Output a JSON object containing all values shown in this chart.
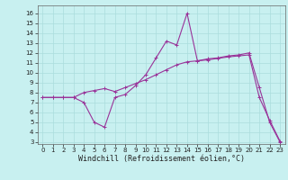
{
  "title": "",
  "xlabel": "Windchill (Refroidissement éolien,°C)",
  "ylabel": "",
  "bg_color": "#c8f0f0",
  "line_color": "#993399",
  "xlim": [
    -0.5,
    23.5
  ],
  "ylim": [
    2.8,
    16.8
  ],
  "xticks": [
    0,
    1,
    2,
    3,
    4,
    5,
    6,
    7,
    8,
    9,
    10,
    11,
    12,
    13,
    14,
    15,
    16,
    17,
    18,
    19,
    20,
    21,
    22,
    23
  ],
  "yticks": [
    3,
    4,
    5,
    6,
    7,
    8,
    9,
    10,
    11,
    12,
    13,
    14,
    15,
    16
  ],
  "series1_x": [
    0,
    1,
    2,
    3,
    4,
    5,
    6,
    7,
    8,
    9,
    10,
    11,
    12,
    13,
    14,
    15,
    16,
    17,
    18,
    19,
    20,
    21,
    22,
    23
  ],
  "series1_y": [
    7.5,
    7.5,
    7.5,
    7.5,
    7.0,
    5.0,
    4.5,
    7.5,
    7.8,
    8.7,
    9.8,
    11.5,
    13.2,
    12.8,
    16.0,
    11.2,
    11.4,
    11.5,
    11.7,
    11.8,
    12.0,
    8.5,
    5.0,
    3.0
  ],
  "series2_x": [
    0,
    1,
    2,
    3,
    4,
    5,
    6,
    7,
    8,
    9,
    10,
    11,
    12,
    13,
    14,
    15,
    16,
    17,
    18,
    19,
    20,
    21,
    22,
    23
  ],
  "series2_y": [
    7.5,
    7.5,
    7.5,
    7.5,
    8.0,
    8.2,
    8.4,
    8.1,
    8.5,
    8.9,
    9.3,
    9.8,
    10.3,
    10.8,
    11.1,
    11.2,
    11.3,
    11.45,
    11.6,
    11.7,
    11.8,
    7.5,
    5.2,
    3.1
  ],
  "marker": "+",
  "markersize": 3,
  "linewidth": 0.8,
  "grid_color": "#aadddd",
  "tick_fontsize": 5.0,
  "xlabel_fontsize": 6.0
}
